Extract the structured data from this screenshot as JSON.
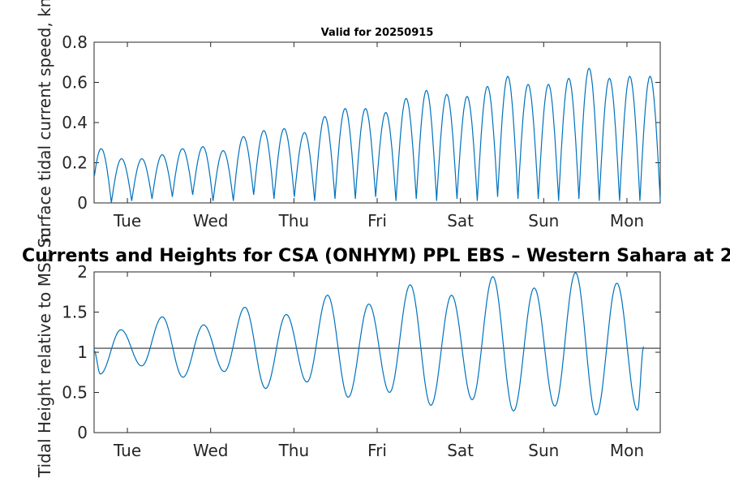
{
  "chart_data": [
    {
      "type": "line",
      "title": "Valid for 20250915",
      "ylabel": "Surface tidal current speed, kn",
      "ylim": [
        0,
        0.8
      ],
      "yticks": [
        "0",
        "0.2",
        "0.4",
        "0.6",
        "0.8"
      ],
      "xlim_days": [
        0.6,
        7.4
      ],
      "x_tick_labels": [
        "Tue",
        "Wed",
        "Thu",
        "Fri",
        "Sat",
        "Sun",
        "Mon"
      ],
      "series": [
        {
          "color": "#0072BD",
          "peaks": [
            0.27,
            0.22,
            0.22,
            0.24,
            0.27,
            0.28,
            0.26,
            0.33,
            0.36,
            0.37,
            0.35,
            0.43,
            0.47,
            0.47,
            0.45,
            0.52,
            0.56,
            0.54,
            0.53,
            0.58,
            0.63,
            0.59,
            0.59,
            0.62,
            0.67,
            0.62,
            0.63,
            0.63
          ],
          "troughs": [
            0.0,
            0.01,
            0.02,
            0.03,
            0.04,
            0.01,
            0.01,
            0.04,
            0.02,
            0.03,
            0.01,
            0.02,
            0.02,
            0.03,
            0.01,
            0.02,
            0.01,
            0.02,
            0.01,
            0.03,
            0.02,
            0.02,
            0.01,
            0.02,
            0.01
          ]
        }
      ]
    },
    {
      "type": "line",
      "title": "Currents and Heights for CSA (ONHYM) PPL EBS  – Western Sahara at 2",
      "ylabel": "Tidal Height relative to MSL, m",
      "ylim": [
        0,
        2
      ],
      "yticks": [
        "0",
        "0.5",
        "1",
        "1.5",
        "2"
      ],
      "xlim_days": [
        0.6,
        7.4
      ],
      "x_tick_labels": [
        "Tue",
        "Wed",
        "Thu",
        "Fri",
        "Sat",
        "Sun",
        "Mon"
      ],
      "reference_line": {
        "value": 1.05,
        "color": "#333333"
      },
      "series": [
        {
          "color": "#0072BD",
          "start_value": 1.02,
          "extrema": [
            0.73,
            1.28,
            0.83,
            1.44,
            0.69,
            1.34,
            0.76,
            1.56,
            0.55,
            1.47,
            0.63,
            1.71,
            0.44,
            1.6,
            0.5,
            1.84,
            0.34,
            1.71,
            0.41,
            1.94,
            0.27,
            1.8,
            0.33,
            1.99,
            0.22,
            1.86,
            0.28
          ],
          "end_value": 1.07
        }
      ]
    }
  ]
}
